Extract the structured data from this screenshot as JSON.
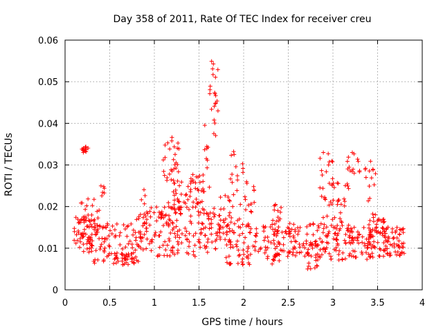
{
  "chart_data": {
    "type": "scatter",
    "title": "Day 358 of 2011, Rate Of TEC Index for receiver creu",
    "xlabel": "GPS time / hours",
    "ylabel": "ROTI / TECUs",
    "xlim": [
      0,
      4
    ],
    "ylim": [
      0,
      0.06
    ],
    "x_ticks": [
      0,
      0.5,
      1,
      1.5,
      2,
      2.5,
      3,
      3.5,
      4
    ],
    "y_ticks": [
      0,
      0.01,
      0.02,
      0.03,
      0.04,
      0.05,
      0.06
    ],
    "x_tick_labels": [
      "0",
      "0.5",
      "1",
      "1.5",
      "2",
      "2.5",
      "3",
      "3.5",
      "4"
    ],
    "y_tick_labels": [
      "0",
      "0.01",
      "0.02",
      "0.03",
      "0.04",
      "0.05",
      "0.06"
    ],
    "grid": true,
    "marker": "+",
    "marker_color": "#ff0000",
    "series": [
      {
        "name": "ROTI",
        "clusters": [
          {
            "x": [
              0.1,
              0.35
            ],
            "y": [
              0.009,
              0.018
            ],
            "n": 60
          },
          {
            "x": [
              0.18,
              0.26
            ],
            "y": [
              0.033,
              0.0345
            ],
            "n": 14
          },
          {
            "x": [
              0.15,
              0.45
            ],
            "y": [
              0.012,
              0.022
            ],
            "n": 25
          },
          {
            "x": [
              0.28,
              0.55
            ],
            "y": [
              0.006,
              0.016
            ],
            "n": 45
          },
          {
            "x": [
              0.4,
              0.45
            ],
            "y": [
              0.022,
              0.025
            ],
            "n": 6
          },
          {
            "x": [
              0.55,
              0.85
            ],
            "y": [
              0.006,
              0.016
            ],
            "n": 55
          },
          {
            "x": [
              0.62,
              0.78
            ],
            "y": [
              0.006,
              0.009
            ],
            "n": 22
          },
          {
            "x": [
              0.8,
              0.92
            ],
            "y": [
              0.012,
              0.025
            ],
            "n": 20
          },
          {
            "x": [
              0.85,
              1.2
            ],
            "y": [
              0.008,
              0.02
            ],
            "n": 55
          },
          {
            "x": [
              1.05,
              1.3
            ],
            "y": [
              0.012,
              0.022
            ],
            "n": 30
          },
          {
            "x": [
              1.1,
              1.28
            ],
            "y": [
              0.026,
              0.037
            ],
            "n": 28
          },
          {
            "x": [
              1.2,
              1.55
            ],
            "y": [
              0.008,
              0.028
            ],
            "n": 90
          },
          {
            "x": [
              1.4,
              1.55
            ],
            "y": [
              0.018,
              0.028
            ],
            "n": 20
          },
          {
            "x": [
              1.55,
              1.62
            ],
            "y": [
              0.023,
              0.04
            ],
            "n": 10
          },
          {
            "x": [
              1.62,
              1.72
            ],
            "y": [
              0.036,
              0.056
            ],
            "n": 22
          },
          {
            "x": [
              1.55,
              1.75
            ],
            "y": [
              0.009,
              0.02
            ],
            "n": 45
          },
          {
            "x": [
              1.72,
              1.85
            ],
            "y": [
              0.011,
              0.024
            ],
            "n": 25
          },
          {
            "x": [
              1.85,
              2.0
            ],
            "y": [
              0.015,
              0.034
            ],
            "n": 22
          },
          {
            "x": [
              1.8,
              2.1
            ],
            "y": [
              0.006,
              0.016
            ],
            "n": 55
          },
          {
            "x": [
              2.0,
              2.12
            ],
            "y": [
              0.018,
              0.026
            ],
            "n": 14
          },
          {
            "x": [
              2.1,
              2.45
            ],
            "y": [
              0.008,
              0.016
            ],
            "n": 55
          },
          {
            "x": [
              2.25,
              2.4
            ],
            "y": [
              0.006,
              0.009
            ],
            "n": 10
          },
          {
            "x": [
              2.3,
              2.45
            ],
            "y": [
              0.015,
              0.021
            ],
            "n": 14
          },
          {
            "x": [
              2.45,
              2.85
            ],
            "y": [
              0.008,
              0.016
            ],
            "n": 75
          },
          {
            "x": [
              2.7,
              2.85
            ],
            "y": [
              0.005,
              0.011
            ],
            "n": 15
          },
          {
            "x": [
              2.85,
              3.0
            ],
            "y": [
              0.015,
              0.034
            ],
            "n": 28
          },
          {
            "x": [
              2.85,
              3.2
            ],
            "y": [
              0.007,
              0.016
            ],
            "n": 65
          },
          {
            "x": [
              3.0,
              3.18
            ],
            "y": [
              0.016,
              0.027
            ],
            "n": 22
          },
          {
            "x": [
              3.15,
              3.3
            ],
            "y": [
              0.027,
              0.033
            ],
            "n": 14
          },
          {
            "x": [
              3.18,
              3.45
            ],
            "y": [
              0.007,
              0.016
            ],
            "n": 55
          },
          {
            "x": [
              3.35,
              3.48
            ],
            "y": [
              0.017,
              0.031
            ],
            "n": 16
          },
          {
            "x": [
              3.4,
              3.62
            ],
            "y": [
              0.008,
              0.017
            ],
            "n": 50
          },
          {
            "x": [
              3.55,
              3.8
            ],
            "y": [
              0.008,
              0.015
            ],
            "n": 60
          }
        ]
      }
    ]
  }
}
